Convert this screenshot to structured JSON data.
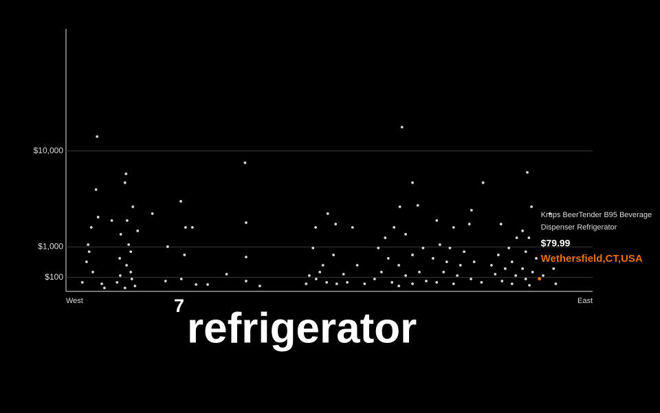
{
  "chart_data": {
    "type": "scatter",
    "scale": "sqrt",
    "grid": true,
    "color": "#d8d8d8",
    "xlim": [
      0,
      100
    ],
    "ylim": [
      0,
      35000
    ],
    "yticks": [
      {
        "value": 100,
        "label": "$100"
      },
      {
        "value": 1000,
        "label": "$1,000"
      },
      {
        "value": 10000,
        "label": "$10,000"
      }
    ],
    "x_axis_labels": {
      "left": "West",
      "right": "East"
    },
    "x": [
      5.9,
      5.7,
      6.1,
      4.8,
      4.2,
      4.4,
      3.9,
      5.1,
      3.1,
      6.8,
      7.3,
      11.4,
      11.2,
      12.7,
      11.6,
      10.4,
      11.9,
      12.3,
      10.2,
      11.5,
      12.3,
      10.3,
      12.5,
      9.7,
      13.1,
      11.2,
      8.7,
      13.6,
      16.4,
      19.3,
      18.9,
      21.8,
      22.7,
      22.5,
      21.9,
      24,
      24.7,
      26.9,
      30.5,
      34,
      34.2,
      34.2,
      34.2,
      36.8,
      49.7,
      51.2,
      47.4,
      54.4,
      46.9,
      50.8,
      48.8,
      55.3,
      46.2,
      47.5,
      49.5,
      51.4,
      53.4,
      56.7,
      45.6,
      52.7,
      48.2,
      63.8,
      65.8,
      63.4,
      66.8,
      64.5,
      60.6,
      62.3,
      59.3,
      61.2,
      65.8,
      63.2,
      59.9,
      64.5,
      67.1,
      58.6,
      61.9,
      65.8,
      68.4,
      67.8,
      63.2,
      70.4,
      73.6,
      77,
      76.6,
      71,
      72.9,
      75.6,
      69.7,
      72.3,
      74.9,
      77.5,
      71.7,
      74.3,
      76.9,
      70.4,
      73.6,
      78.9,
      79.2,
      87.6,
      88.4,
      82.6,
      86.7,
      85.6,
      87.9,
      84.1,
      87.3,
      82.1,
      89.3,
      84.7,
      80.8,
      83.4,
      86.7,
      88.6,
      81.5,
      85.4,
      87.3,
      82.8,
      84.7,
      88,
      90.6,
      91.9,
      92.6,
      93
    ],
    "y": [
      12170,
      5265,
      2800,
      2078,
      1110,
      800,
      444,
      190,
      41,
      29,
      6,
      7020,
      6000,
      3636,
      2550,
      1655,
      1110,
      800,
      554,
      347,
      190,
      127,
      78,
      41,
      15,
      6,
      2550,
      1860,
      3068,
      1015,
      54,
      4120,
      2078,
      675,
      78,
      2078,
      24,
      24,
      150,
      8400,
      2400,
      600,
      54,
      15,
      3068,
      2300,
      2078,
      2078,
      954,
      675,
      347,
      347,
      127,
      78,
      41,
      29,
      41,
      29,
      29,
      150,
      190,
      13700,
      6000,
      3636,
      3754,
      1655,
      1460,
      2078,
      954,
      554,
      675,
      347,
      190,
      127,
      190,
      78,
      41,
      29,
      54,
      954,
      15,
      2550,
      2078,
      3346,
      2300,
      1110,
      954,
      800,
      554,
      444,
      347,
      444,
      190,
      127,
      78,
      41,
      29,
      41,
      6000,
      7190,
      3636,
      2300,
      1860,
      1460,
      1460,
      954,
      800,
      675,
      554,
      444,
      347,
      262,
      262,
      190,
      150,
      127,
      78,
      54,
      29,
      19,
      127,
      3068,
      262,
      29
    ],
    "highlight": {
      "x": 89.9,
      "y": 79.99,
      "value_label": "$79.99",
      "color": "#e8720c",
      "name_lines": [
        "Krups BeerTender B95 Beverage",
        "Dispenser Refrigerator"
      ],
      "location": "Wethersfield,CT,USA"
    },
    "annotation": {
      "rank": "7",
      "term": "refrigerator"
    }
  }
}
